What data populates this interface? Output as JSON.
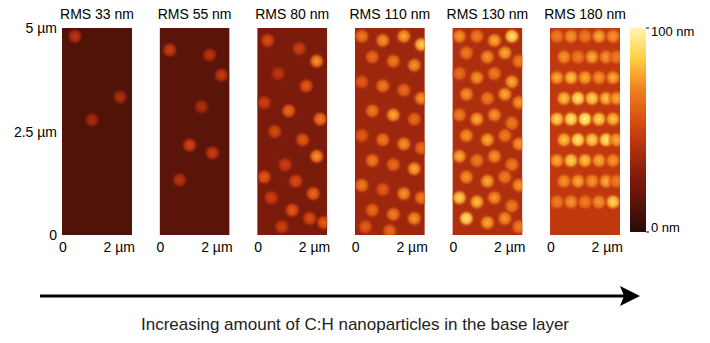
{
  "chart_data": {
    "type": "heatmap",
    "xlim": [
      0,
      2
    ],
    "ylim": [
      0,
      5
    ],
    "xticks": [
      0,
      {
        "value": 2,
        "label": "2 µm"
      }
    ],
    "yticks": [
      {
        "value": 0,
        "label": "0"
      },
      {
        "value": 2.5,
        "label": "2.5 µm"
      },
      {
        "value": 5,
        "label": "5 µm"
      }
    ],
    "colorbar": {
      "zlim": [
        0,
        100
      ],
      "zticks": [
        {
          "value": 0,
          "label": "0 nm"
        },
        {
          "value": 100,
          "label": "100 nm"
        }
      ]
    },
    "caption": "Increasing amount of C:H nanoparticles in the base layer",
    "panels": [
      {
        "title": "RMS 33 nm",
        "background": 12,
        "x": [
          0.37,
          1.66,
          0.86
        ],
        "y": [
          4.8,
          3.33,
          2.78
        ],
        "values": [
          45,
          42,
          40
        ]
      },
      {
        "title": "RMS 55 nm",
        "background": 15,
        "x": [
          0.29,
          1.43,
          1.77,
          0.86,
          1.51,
          0.57,
          1.2
        ],
        "y": [
          4.47,
          4.35,
          3.86,
          2.17,
          1.98,
          1.33,
          3.1
        ],
        "values": [
          50,
          45,
          48,
          52,
          50,
          45,
          42
        ]
      },
      {
        "title": "RMS 80 nm",
        "background": 25,
        "x": [
          0.3,
          1.2,
          1.7,
          0.6,
          1.4,
          0.2,
          0.9,
          1.8,
          0.5,
          1.3,
          1.7,
          0.8,
          0.2,
          1.1,
          1.6,
          0.4,
          1.0,
          1.5,
          0.7,
          1.9
        ],
        "y": [
          4.7,
          4.5,
          4.2,
          3.9,
          3.6,
          3.2,
          3.0,
          2.8,
          2.5,
          2.3,
          1.9,
          1.7,
          1.4,
          1.3,
          1.0,
          0.9,
          0.6,
          0.4,
          0.2,
          0.3
        ],
        "values": [
          55,
          50,
          75,
          45,
          60,
          50,
          65,
          70,
          55,
          60,
          75,
          50,
          60,
          55,
          65,
          50,
          60,
          55,
          50,
          60
        ]
      },
      {
        "title": "RMS 110 nm",
        "background": 35,
        "x": [
          0.2,
          0.8,
          1.4,
          1.9,
          0.5,
          1.1,
          1.7,
          0.2,
          0.8,
          1.4,
          1.9,
          0.5,
          1.1,
          1.7,
          0.2,
          0.8,
          1.4,
          1.9,
          0.5,
          1.1,
          1.7,
          0.2,
          0.8,
          1.4,
          1.9,
          0.5,
          1.1,
          1.7,
          0.3,
          1.0
        ],
        "y": [
          4.8,
          4.7,
          4.8,
          4.6,
          4.3,
          4.2,
          4.1,
          3.7,
          3.6,
          3.5,
          3.3,
          3.0,
          2.9,
          2.8,
          2.4,
          2.3,
          2.2,
          2.1,
          1.8,
          1.7,
          1.6,
          1.2,
          1.1,
          1.0,
          0.9,
          0.6,
          0.5,
          0.4,
          0.2,
          0.1
        ],
        "values": [
          70,
          75,
          80,
          90,
          65,
          70,
          75,
          60,
          70,
          65,
          75,
          70,
          80,
          65,
          60,
          70,
          75,
          65,
          70,
          65,
          80,
          70,
          60,
          75,
          70,
          65,
          70,
          75,
          60,
          65
        ]
      },
      {
        "title": "RMS 130 nm",
        "background": 40,
        "x": [
          0.2,
          0.7,
          1.2,
          1.7,
          0.4,
          1.0,
          1.5,
          1.9,
          0.2,
          0.7,
          1.2,
          1.7,
          0.4,
          1.0,
          1.5,
          1.9,
          0.2,
          0.7,
          1.2,
          1.7,
          0.4,
          1.0,
          1.5,
          1.9,
          0.2,
          0.7,
          1.2,
          1.7,
          0.4,
          1.0,
          1.5,
          1.9,
          0.2,
          0.7,
          1.2,
          1.7,
          0.4,
          1.0,
          1.5,
          1.9
        ],
        "y": [
          4.8,
          4.8,
          4.7,
          4.8,
          4.4,
          4.3,
          4.4,
          4.2,
          3.9,
          3.8,
          3.9,
          3.7,
          3.4,
          3.3,
          3.4,
          3.2,
          2.9,
          2.8,
          2.9,
          2.7,
          2.4,
          2.3,
          2.4,
          2.2,
          1.9,
          1.8,
          1.9,
          1.7,
          1.4,
          1.3,
          1.4,
          1.2,
          0.9,
          0.8,
          0.9,
          0.7,
          0.4,
          0.3,
          0.4,
          0.2
        ],
        "values": [
          75,
          70,
          80,
          95,
          70,
          75,
          80,
          70,
          65,
          75,
          70,
          80,
          75,
          70,
          80,
          75,
          70,
          80,
          75,
          70,
          75,
          80,
          70,
          75,
          80,
          70,
          75,
          70,
          75,
          80,
          70,
          75,
          90,
          85,
          75,
          70,
          95,
          80,
          75,
          70
        ]
      },
      {
        "title": "RMS 180 nm",
        "background": 45,
        "x": [
          0.2,
          0.6,
          1.0,
          1.4,
          1.8,
          0.4,
          0.8,
          1.2,
          1.6,
          1.9,
          0.2,
          0.6,
          1.0,
          1.4,
          1.8,
          0.4,
          0.8,
          1.2,
          1.6,
          1.9,
          0.2,
          0.6,
          1.0,
          1.4,
          1.8,
          0.4,
          0.8,
          1.2,
          1.6,
          1.9,
          0.2,
          0.6,
          1.0,
          1.4,
          1.8,
          0.4,
          0.8,
          1.2,
          1.6,
          1.9,
          0.2,
          0.6,
          1.0,
          1.4,
          1.8
        ],
        "y": [
          4.8,
          4.8,
          4.8,
          4.8,
          4.8,
          4.3,
          4.3,
          4.3,
          4.3,
          4.3,
          3.8,
          3.8,
          3.8,
          3.8,
          3.8,
          3.3,
          3.3,
          3.3,
          3.3,
          3.3,
          2.8,
          2.8,
          2.8,
          2.8,
          2.8,
          2.3,
          2.3,
          2.3,
          2.3,
          2.3,
          1.8,
          1.8,
          1.8,
          1.8,
          1.8,
          1.3,
          1.3,
          1.3,
          1.3,
          1.3,
          0.8,
          0.8,
          0.8,
          0.8,
          0.8
        ],
        "values": [
          70,
          75,
          70,
          80,
          75,
          75,
          70,
          80,
          75,
          70,
          80,
          85,
          80,
          75,
          80,
          85,
          95,
          90,
          85,
          80,
          90,
          95,
          100,
          90,
          85,
          85,
          95,
          90,
          95,
          80,
          80,
          90,
          85,
          80,
          75,
          75,
          80,
          75,
          80,
          70,
          70,
          75,
          70,
          75,
          90
        ]
      }
    ]
  }
}
